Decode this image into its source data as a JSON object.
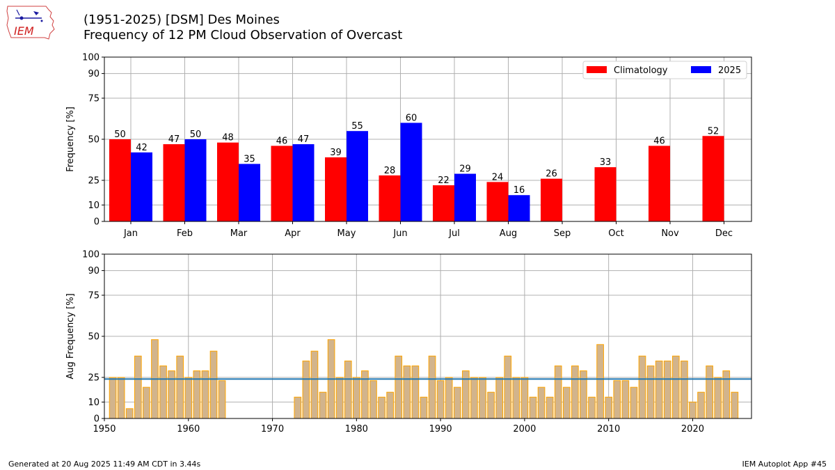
{
  "header": {
    "title_line1": "(1951-2025) [DSM] Des Moines",
    "title_line2": "Frequency of 12 PM Cloud Observation of Overcast",
    "logo_text": "IEM"
  },
  "footer": {
    "generated": "Generated at 20 Aug 2025 11:49 AM CDT in 3.44s",
    "app": "IEM Autoplot App #45"
  },
  "colors": {
    "climatology": "#ff0000",
    "current_year": "#0000ff",
    "year_bar_fill": "#d2b48c",
    "year_bar_edge": "#ffa500",
    "avg_line": "#1f77b4",
    "grid": "#b0b0b0"
  },
  "chart_data": [
    {
      "type": "bar",
      "ylabel": "Frequency [%]",
      "ylim": [
        0,
        100
      ],
      "yticks": [
        0,
        10,
        25,
        50,
        75,
        90,
        100
      ],
      "grid": true,
      "legend_position": "top-right",
      "categories": [
        "Jan",
        "Feb",
        "Mar",
        "Apr",
        "May",
        "Jun",
        "Jul",
        "Aug",
        "Sep",
        "Oct",
        "Nov",
        "Dec"
      ],
      "series": [
        {
          "name": "Climatology",
          "values": [
            50,
            47,
            48,
            46,
            39,
            28,
            22,
            24,
            26,
            33,
            46,
            52
          ]
        },
        {
          "name": "2025",
          "values": [
            42,
            50,
            35,
            47,
            55,
            60,
            29,
            16,
            null,
            null,
            null,
            null
          ]
        }
      ]
    },
    {
      "type": "bar",
      "ylabel": "Aug Frequency [%]",
      "ylim": [
        0,
        100
      ],
      "yticks": [
        0,
        10,
        25,
        50,
        75,
        90,
        100
      ],
      "xlim": [
        1950,
        2027
      ],
      "xticks": [
        1950,
        1960,
        1970,
        1980,
        1990,
        2000,
        2010,
        2020
      ],
      "grid": true,
      "average": 24,
      "x": [
        1951,
        1952,
        1953,
        1954,
        1955,
        1956,
        1957,
        1958,
        1959,
        1960,
        1961,
        1962,
        1963,
        1964,
        1973,
        1974,
        1975,
        1976,
        1977,
        1978,
        1979,
        1980,
        1981,
        1982,
        1983,
        1984,
        1985,
        1986,
        1987,
        1988,
        1989,
        1990,
        1991,
        1992,
        1993,
        1994,
        1995,
        1996,
        1997,
        1998,
        1999,
        2000,
        2001,
        2002,
        2003,
        2004,
        2005,
        2006,
        2007,
        2008,
        2009,
        2010,
        2011,
        2012,
        2013,
        2014,
        2015,
        2016,
        2017,
        2018,
        2019,
        2020,
        2021,
        2022,
        2023,
        2024,
        2025
      ],
      "values": [
        25,
        25,
        6,
        38,
        19,
        48,
        32,
        29,
        38,
        25,
        29,
        29,
        41,
        23,
        13,
        35,
        41,
        16,
        48,
        25,
        35,
        25,
        29,
        23,
        13,
        16,
        38,
        32,
        32,
        13,
        38,
        23,
        25,
        19,
        29,
        25,
        25,
        16,
        25,
        38,
        25,
        25,
        13,
        19,
        13,
        32,
        19,
        32,
        29,
        13,
        45,
        13,
        23,
        23,
        19,
        38,
        32,
        35,
        35,
        38,
        35,
        10,
        16,
        32,
        25,
        29,
        16
      ]
    }
  ]
}
